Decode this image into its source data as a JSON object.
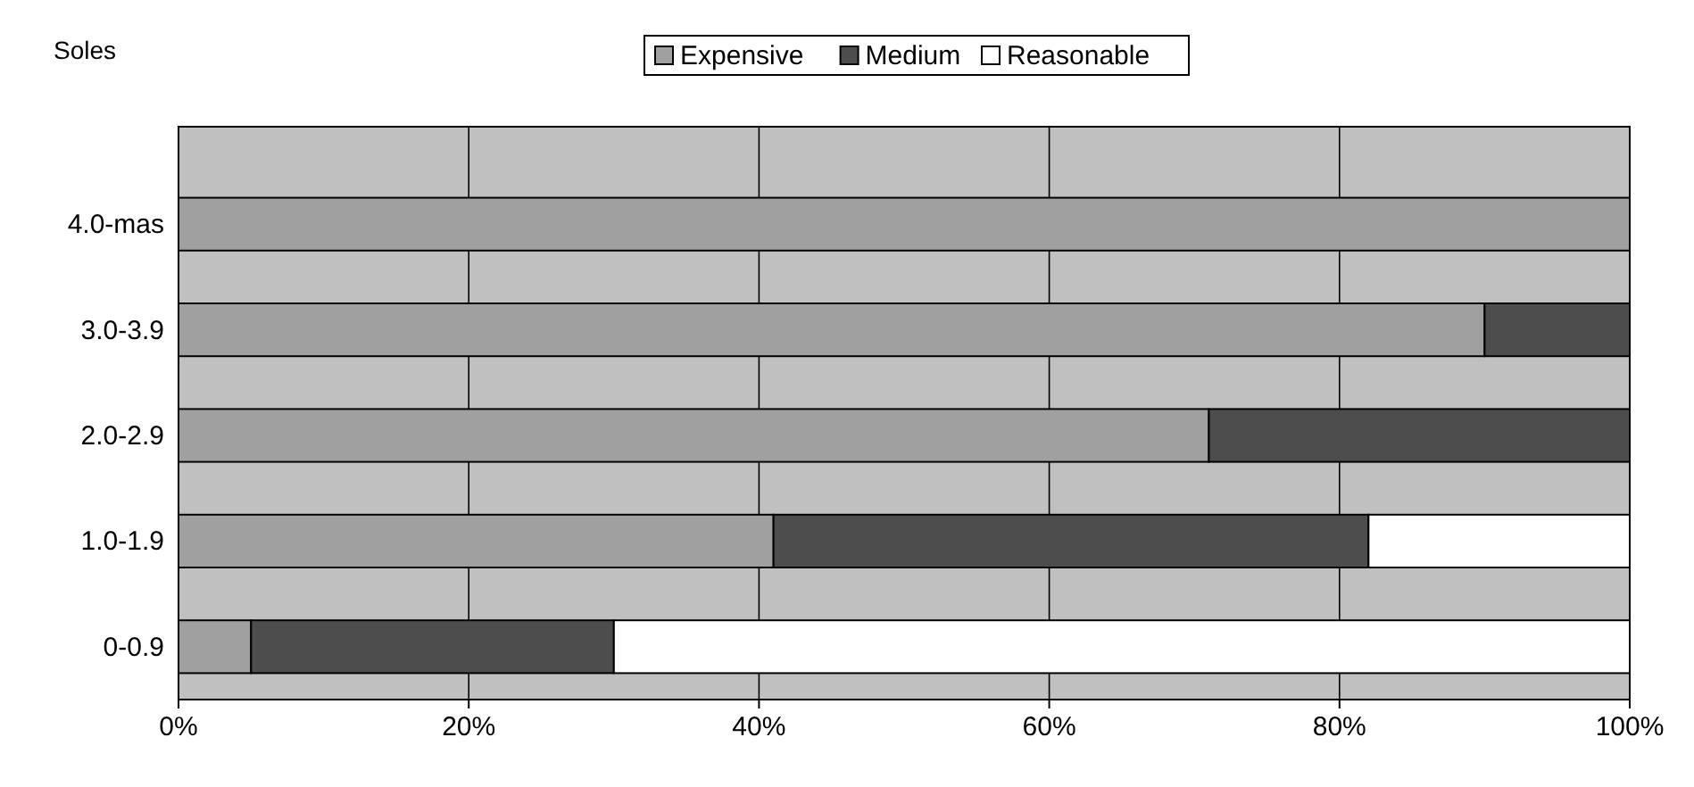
{
  "chart_data": {
    "type": "bar",
    "orientation": "horizontal",
    "stacked": true,
    "ylabel": "Soles",
    "categories": [
      "4.0-mas",
      "3.0-3.9",
      "2.0-2.9",
      "1.0-1.9",
      "0-0.9"
    ],
    "series": [
      {
        "name": "Expensive",
        "color": "#a0a0a0",
        "values": [
          100,
          90,
          71,
          41,
          5
        ]
      },
      {
        "name": "Medium",
        "color": "#4d4d4d",
        "values": [
          0,
          10,
          29,
          41,
          25
        ]
      },
      {
        "name": "Reasonable",
        "color": "#ffffff",
        "values": [
          0,
          0,
          0,
          18,
          70
        ]
      }
    ],
    "xlim": [
      0,
      100
    ],
    "xticks": [
      {
        "value": 0,
        "label": "0%"
      },
      {
        "value": 20,
        "label": "20%"
      },
      {
        "value": 40,
        "label": "40%"
      },
      {
        "value": 60,
        "label": "60%"
      },
      {
        "value": 80,
        "label": "80%"
      },
      {
        "value": 100,
        "label": "100%"
      }
    ],
    "grid": "x",
    "legend": "top"
  }
}
